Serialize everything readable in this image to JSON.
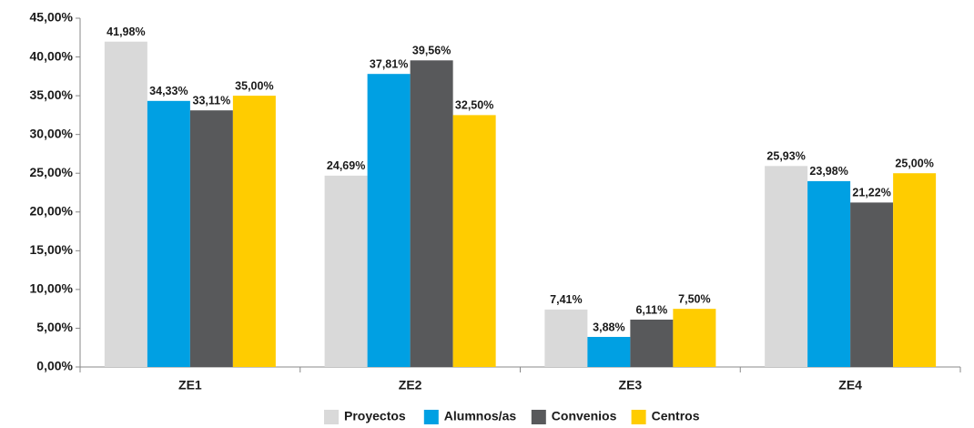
{
  "chart_data": {
    "type": "bar",
    "categories": [
      "ZE1",
      "ZE2",
      "ZE3",
      "ZE4"
    ],
    "series": [
      {
        "name": "Proyectos",
        "color": "#d9d9d9",
        "values": [
          41.98,
          24.69,
          7.41,
          25.93
        ],
        "value_labels": [
          "41,98%",
          "24,69%",
          "7,41%",
          "25,93%"
        ]
      },
      {
        "name": "Alumnos/as",
        "color": "#00a0e3",
        "values": [
          34.33,
          37.81,
          3.88,
          23.98
        ],
        "value_labels": [
          "34,33%",
          "37,81%",
          "3,88%",
          "23,98%"
        ]
      },
      {
        "name": "Convenios",
        "color": "#58595b",
        "values": [
          33.11,
          39.56,
          6.11,
          21.22
        ],
        "value_labels": [
          "33,11%",
          "39,56%",
          "6,11%",
          "21,22%"
        ]
      },
      {
        "name": "Centros",
        "color": "#ffcc00",
        "values": [
          35.0,
          32.5,
          7.5,
          25.0
        ],
        "value_labels": [
          "35,00%",
          "32,50%",
          "7,50%",
          "25,00%"
        ]
      }
    ],
    "ylim": [
      0,
      45
    ],
    "yticks": [
      {
        "value": 0,
        "label": "0,00%"
      },
      {
        "value": 5,
        "label": "5,00%"
      },
      {
        "value": 10,
        "label": "10,00%"
      },
      {
        "value": 15,
        "label": "15,00%"
      },
      {
        "value": 20,
        "label": "20,00%"
      },
      {
        "value": 25,
        "label": "25,00%"
      },
      {
        "value": 30,
        "label": "30,00%"
      },
      {
        "value": 35,
        "label": "35,00%"
      },
      {
        "value": 40,
        "label": "40,00%"
      },
      {
        "value": 45,
        "label": "45,00%"
      }
    ],
    "grid": false,
    "legend": "bottom"
  }
}
